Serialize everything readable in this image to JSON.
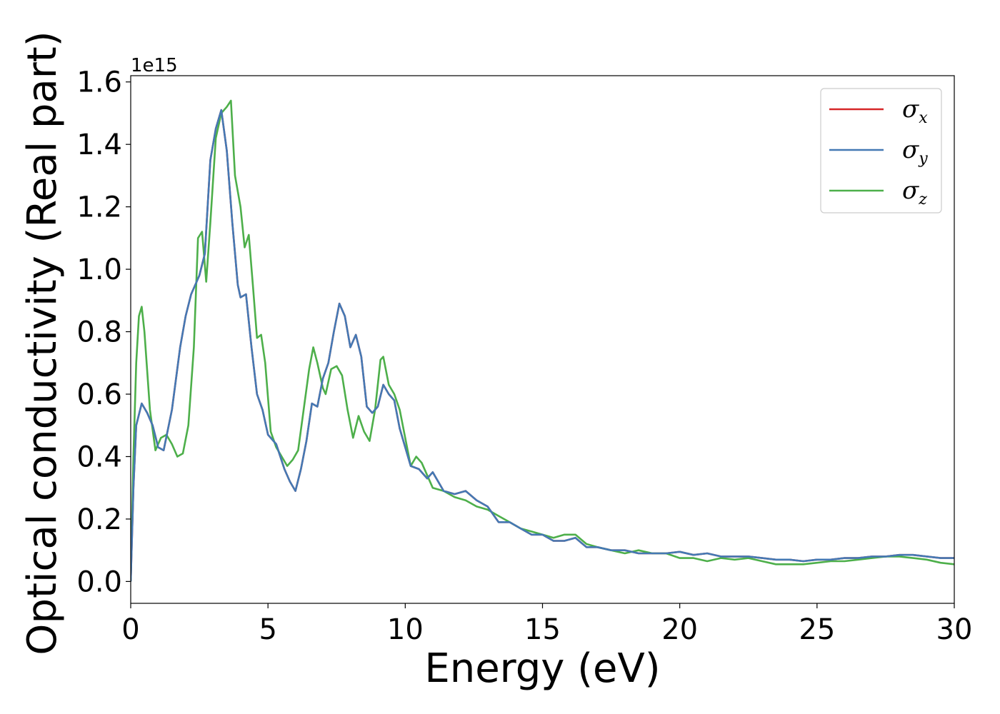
{
  "chart_data": {
    "type": "line",
    "xlabel": "Energy (eV)",
    "ylabel": "Optical conductivity (Real part)",
    "y_offset_label": "1e15",
    "xlim": [
      0,
      30
    ],
    "ylim": [
      -0.07,
      1.62
    ],
    "xticks": [
      0,
      5,
      10,
      15,
      20,
      25,
      30
    ],
    "yticks": [
      0.0,
      0.2,
      0.4,
      0.6,
      0.8,
      1.0,
      1.2,
      1.4,
      1.6
    ],
    "ytick_labels": [
      "0.0",
      "0.2",
      "0.4",
      "0.6",
      "0.8",
      "1.0",
      "1.2",
      "1.4",
      "1.6"
    ],
    "xtick_labels": [
      "0",
      "5",
      "10",
      "15",
      "20",
      "25",
      "30"
    ],
    "grid": false,
    "legend": {
      "position": "top-right"
    },
    "series": [
      {
        "name": "σx",
        "base": "σ",
        "sub": "x",
        "color": "#d62728",
        "x": [
          0,
          0.1,
          0.2,
          0.4,
          0.6,
          0.8,
          1.0,
          1.2,
          1.5,
          1.8,
          2.0,
          2.2,
          2.5,
          2.7,
          2.9,
          3.1,
          3.3,
          3.5,
          3.7,
          3.9,
          4.0,
          4.2,
          4.4,
          4.6,
          4.8,
          5.0,
          5.3,
          5.6,
          5.8,
          6.0,
          6.2,
          6.4,
          6.6,
          6.8,
          7.0,
          7.2,
          7.4,
          7.6,
          7.8,
          8.0,
          8.2,
          8.4,
          8.6,
          8.8,
          9.0,
          9.2,
          9.4,
          9.6,
          9.8,
          10.0,
          10.2,
          10.5,
          10.8,
          11.0,
          11.4,
          11.8,
          12.2,
          12.6,
          13.0,
          13.4,
          13.8,
          14.2,
          14.6,
          15.0,
          15.4,
          15.8,
          16.2,
          16.6,
          17.0,
          17.5,
          18.0,
          18.5,
          19.0,
          19.5,
          20.0,
          20.5,
          21.0,
          21.5,
          22.0,
          22.5,
          23.0,
          23.5,
          24.0,
          24.5,
          25.0,
          25.5,
          26.0,
          26.5,
          27.0,
          27.5,
          28.0,
          28.5,
          29.0,
          29.5,
          30.0
        ],
        "y": [
          0.0,
          0.3,
          0.5,
          0.57,
          0.54,
          0.5,
          0.43,
          0.42,
          0.55,
          0.75,
          0.85,
          0.92,
          0.98,
          1.05,
          1.35,
          1.45,
          1.51,
          1.38,
          1.15,
          0.95,
          0.91,
          0.92,
          0.75,
          0.6,
          0.55,
          0.47,
          0.44,
          0.36,
          0.32,
          0.29,
          0.36,
          0.45,
          0.57,
          0.56,
          0.65,
          0.7,
          0.8,
          0.89,
          0.85,
          0.75,
          0.79,
          0.72,
          0.56,
          0.54,
          0.56,
          0.63,
          0.6,
          0.58,
          0.49,
          0.43,
          0.37,
          0.36,
          0.33,
          0.35,
          0.29,
          0.28,
          0.29,
          0.26,
          0.24,
          0.19,
          0.19,
          0.17,
          0.15,
          0.15,
          0.13,
          0.13,
          0.14,
          0.11,
          0.11,
          0.1,
          0.1,
          0.09,
          0.09,
          0.09,
          0.095,
          0.085,
          0.09,
          0.08,
          0.08,
          0.08,
          0.075,
          0.07,
          0.07,
          0.065,
          0.07,
          0.07,
          0.075,
          0.075,
          0.08,
          0.08,
          0.085,
          0.085,
          0.08,
          0.075,
          0.075
        ]
      },
      {
        "name": "σy",
        "base": "σ",
        "sub": "y",
        "color": "#4479b4",
        "x": [
          0,
          0.1,
          0.2,
          0.4,
          0.6,
          0.8,
          1.0,
          1.2,
          1.5,
          1.8,
          2.0,
          2.2,
          2.5,
          2.7,
          2.9,
          3.1,
          3.3,
          3.5,
          3.7,
          3.9,
          4.0,
          4.2,
          4.4,
          4.6,
          4.8,
          5.0,
          5.3,
          5.6,
          5.8,
          6.0,
          6.2,
          6.4,
          6.6,
          6.8,
          7.0,
          7.2,
          7.4,
          7.6,
          7.8,
          8.0,
          8.2,
          8.4,
          8.6,
          8.8,
          9.0,
          9.2,
          9.4,
          9.6,
          9.8,
          10.0,
          10.2,
          10.5,
          10.8,
          11.0,
          11.4,
          11.8,
          12.2,
          12.6,
          13.0,
          13.4,
          13.8,
          14.2,
          14.6,
          15.0,
          15.4,
          15.8,
          16.2,
          16.6,
          17.0,
          17.5,
          18.0,
          18.5,
          19.0,
          19.5,
          20.0,
          20.5,
          21.0,
          21.5,
          22.0,
          22.5,
          23.0,
          23.5,
          24.0,
          24.5,
          25.0,
          25.5,
          26.0,
          26.5,
          27.0,
          27.5,
          28.0,
          28.5,
          29.0,
          29.5,
          30.0
        ],
        "y": [
          0.0,
          0.3,
          0.5,
          0.57,
          0.54,
          0.5,
          0.43,
          0.42,
          0.55,
          0.75,
          0.85,
          0.92,
          0.98,
          1.05,
          1.35,
          1.45,
          1.51,
          1.38,
          1.15,
          0.95,
          0.91,
          0.92,
          0.75,
          0.6,
          0.55,
          0.47,
          0.44,
          0.36,
          0.32,
          0.29,
          0.36,
          0.45,
          0.57,
          0.56,
          0.65,
          0.7,
          0.8,
          0.89,
          0.85,
          0.75,
          0.79,
          0.72,
          0.56,
          0.54,
          0.56,
          0.63,
          0.6,
          0.58,
          0.49,
          0.43,
          0.37,
          0.36,
          0.33,
          0.35,
          0.29,
          0.28,
          0.29,
          0.26,
          0.24,
          0.19,
          0.19,
          0.17,
          0.15,
          0.15,
          0.13,
          0.13,
          0.14,
          0.11,
          0.11,
          0.1,
          0.1,
          0.09,
          0.09,
          0.09,
          0.095,
          0.085,
          0.09,
          0.08,
          0.08,
          0.08,
          0.075,
          0.07,
          0.07,
          0.065,
          0.07,
          0.07,
          0.075,
          0.075,
          0.08,
          0.08,
          0.085,
          0.085,
          0.08,
          0.075,
          0.075
        ]
      },
      {
        "name": "σz",
        "base": "σ",
        "sub": "z",
        "color": "#4daf4a",
        "x": [
          0,
          0.1,
          0.2,
          0.3,
          0.4,
          0.5,
          0.7,
          0.9,
          1.1,
          1.3,
          1.5,
          1.7,
          1.9,
          2.1,
          2.3,
          2.45,
          2.6,
          2.75,
          2.9,
          3.1,
          3.3,
          3.5,
          3.65,
          3.8,
          4.0,
          4.15,
          4.3,
          4.45,
          4.6,
          4.75,
          4.9,
          5.1,
          5.3,
          5.5,
          5.7,
          5.9,
          6.1,
          6.3,
          6.5,
          6.65,
          6.8,
          7.0,
          7.1,
          7.3,
          7.5,
          7.7,
          7.9,
          8.1,
          8.3,
          8.5,
          8.7,
          8.9,
          9.1,
          9.2,
          9.4,
          9.6,
          9.8,
          10.0,
          10.2,
          10.4,
          10.6,
          10.8,
          11.0,
          11.4,
          11.8,
          12.2,
          12.6,
          13.0,
          13.4,
          13.8,
          14.2,
          14.6,
          15.0,
          15.4,
          15.8,
          16.2,
          16.6,
          17.0,
          17.5,
          18.0,
          18.5,
          19.0,
          19.5,
          20.0,
          20.5,
          21.0,
          21.5,
          22.0,
          22.5,
          23.0,
          23.5,
          24.0,
          24.5,
          25.0,
          25.5,
          26.0,
          26.5,
          27.0,
          27.5,
          28.0,
          28.5,
          29.0,
          29.5,
          30.0
        ],
        "y": [
          0.0,
          0.4,
          0.7,
          0.85,
          0.88,
          0.8,
          0.55,
          0.42,
          0.46,
          0.47,
          0.44,
          0.4,
          0.41,
          0.5,
          0.75,
          1.1,
          1.12,
          0.96,
          1.15,
          1.42,
          1.5,
          1.52,
          1.54,
          1.3,
          1.2,
          1.07,
          1.11,
          0.95,
          0.78,
          0.79,
          0.7,
          0.48,
          0.43,
          0.4,
          0.37,
          0.39,
          0.42,
          0.55,
          0.68,
          0.75,
          0.7,
          0.62,
          0.6,
          0.68,
          0.69,
          0.66,
          0.55,
          0.46,
          0.53,
          0.48,
          0.45,
          0.55,
          0.71,
          0.72,
          0.63,
          0.6,
          0.55,
          0.46,
          0.37,
          0.4,
          0.38,
          0.34,
          0.3,
          0.29,
          0.27,
          0.26,
          0.24,
          0.23,
          0.21,
          0.19,
          0.17,
          0.16,
          0.15,
          0.14,
          0.15,
          0.15,
          0.12,
          0.11,
          0.1,
          0.09,
          0.1,
          0.09,
          0.09,
          0.075,
          0.075,
          0.065,
          0.075,
          0.07,
          0.075,
          0.065,
          0.055,
          0.055,
          0.055,
          0.06,
          0.065,
          0.065,
          0.07,
          0.075,
          0.08,
          0.08,
          0.075,
          0.07,
          0.06,
          0.055
        ]
      }
    ]
  }
}
